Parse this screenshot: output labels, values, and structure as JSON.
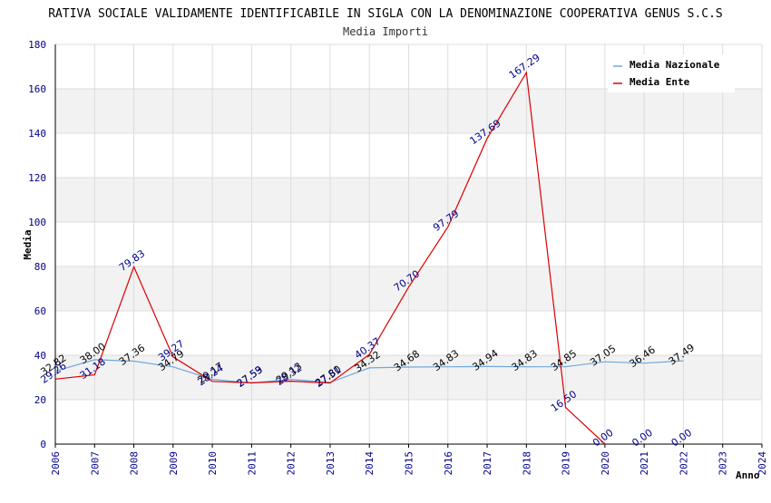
{
  "chart_data": {
    "type": "line",
    "title": "RATIVA SOCIALE VALIDAMENTE IDENTIFICABILE IN SIGLA CON LA DENOMINAZIONE COOPERATIVA GENUS S.C.S",
    "subtitle": "Media Importi",
    "xlabel": "Anno",
    "ylabel": "Media",
    "ylim": [
      0,
      180
    ],
    "yticks": [
      "0",
      "20",
      "40",
      "60",
      "80",
      "100",
      "120",
      "140",
      "160",
      "180"
    ],
    "xticks": [
      "2006",
      "2007",
      "2008",
      "2009",
      "2010",
      "2011",
      "2012",
      "2013",
      "2014",
      "2015",
      "2016",
      "2017",
      "2018",
      "2019",
      "2020",
      "2021",
      "2022",
      "2023",
      "2024"
    ],
    "grid": true,
    "legend_position": "top-right",
    "series": [
      {
        "name": "Media Nazionale",
        "color": "#6fa8dc",
        "points": [
          {
            "x": 2006,
            "y": 32.82,
            "label": "32.82"
          },
          {
            "x": 2007,
            "y": 38.0,
            "label": "38.00"
          },
          {
            "x": 2008,
            "y": 37.36,
            "label": "37.36"
          },
          {
            "x": 2009,
            "y": 34.79,
            "label": "34.79"
          },
          {
            "x": 2010,
            "y": 29.17,
            "label": "29.17"
          },
          {
            "x": 2011,
            "y": 27.53,
            "label": "27.53"
          },
          {
            "x": 2012,
            "y": 29.13,
            "label": "29.13"
          },
          {
            "x": 2013,
            "y": 27.8,
            "label": "27.80"
          },
          {
            "x": 2014,
            "y": 34.32,
            "label": "34.32"
          },
          {
            "x": 2015,
            "y": 34.68,
            "label": "34.68"
          },
          {
            "x": 2016,
            "y": 34.83,
            "label": "34.83"
          },
          {
            "x": 2017,
            "y": 34.94,
            "label": "34.94"
          },
          {
            "x": 2018,
            "y": 34.83,
            "label": "34.83"
          },
          {
            "x": 2019,
            "y": 34.85,
            "label": "34.85"
          },
          {
            "x": 2020,
            "y": 37.05,
            "label": "37.05"
          },
          {
            "x": 2021,
            "y": 36.46,
            "label": "36.46"
          },
          {
            "x": 2022,
            "y": 37.49,
            "label": "37.49"
          }
        ]
      },
      {
        "name": "Media Ente",
        "color": "#dd0000",
        "points": [
          {
            "x": 2006,
            "y": 29.26,
            "label": "29.26"
          },
          {
            "x": 2007,
            "y": 31.18,
            "label": "31.18"
          },
          {
            "x": 2008,
            "y": 79.83,
            "label": "79.83"
          },
          {
            "x": 2009,
            "y": 39.27,
            "label": "39.27"
          },
          {
            "x": 2010,
            "y": 28.24,
            "label": "28.24"
          },
          {
            "x": 2011,
            "y": 27.59,
            "label": "27.59"
          },
          {
            "x": 2012,
            "y": 28.32,
            "label": "28.32"
          },
          {
            "x": 2013,
            "y": 27.51,
            "label": "27.51"
          },
          {
            "x": 2014,
            "y": 40.37,
            "label": "40.37"
          },
          {
            "x": 2015,
            "y": 70.7,
            "label": "70.70"
          },
          {
            "x": 2016,
            "y": 97.79,
            "label": "97.79"
          },
          {
            "x": 2017,
            "y": 137.69,
            "label": "137.69"
          },
          {
            "x": 2018,
            "y": 167.29,
            "label": "167.29"
          },
          {
            "x": 2019,
            "y": 16.5,
            "label": "16.50"
          },
          {
            "x": 2020,
            "y": 0.0,
            "label": "0.00"
          },
          {
            "x": 2021,
            "y": null,
            "label": "0.00"
          },
          {
            "x": 2022,
            "y": null,
            "label": "0.00"
          }
        ]
      }
    ]
  }
}
